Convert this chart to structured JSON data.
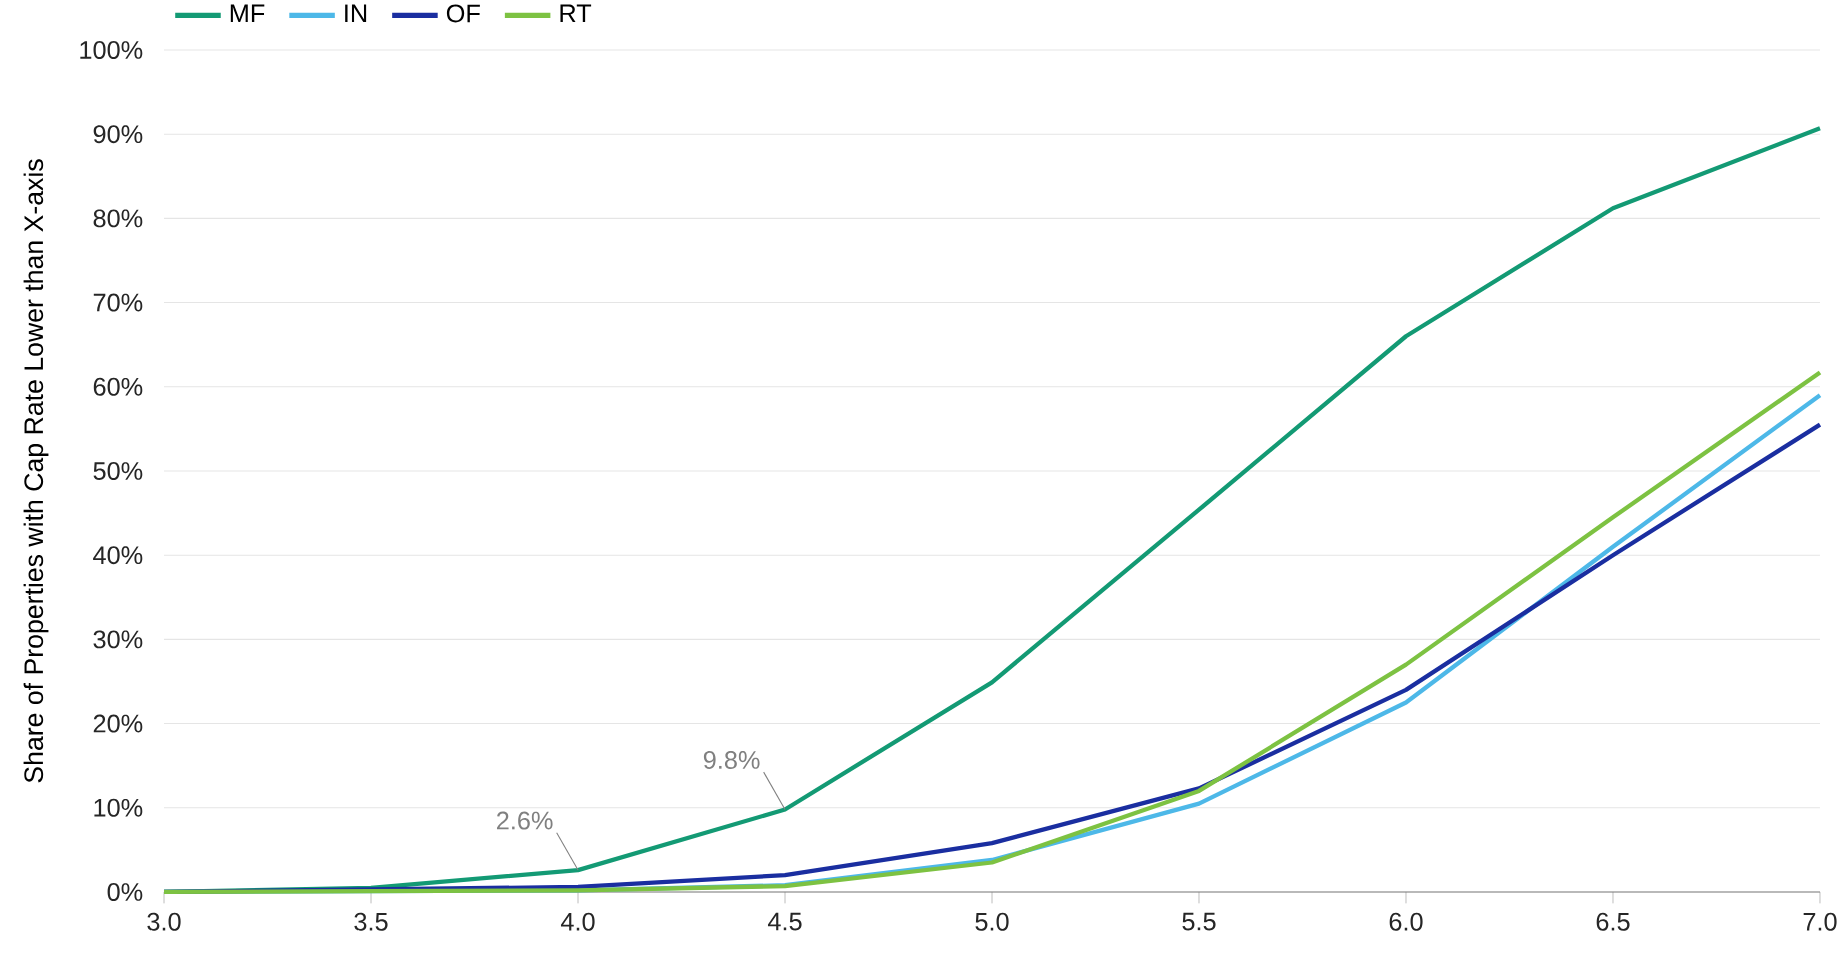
{
  "chart_data": {
    "type": "line",
    "ylabel": "Share of Properties with Cap Rate Lower than X-axis",
    "x": [
      3.0,
      3.5,
      4.0,
      4.5,
      5.0,
      5.5,
      6.0,
      6.5,
      7.0
    ],
    "series": [
      {
        "name": "MF",
        "color": "#139a74",
        "values": [
          0,
          0.5,
          2.6,
          9.8,
          24.9,
          45.4,
          66,
          81.2,
          90.7
        ]
      },
      {
        "name": "IN",
        "color": "#4db8e8",
        "values": [
          0,
          0.1,
          0.2,
          0.8,
          3.8,
          10.5,
          22.5,
          41,
          59
        ]
      },
      {
        "name": "OF",
        "color": "#1a2ea0",
        "values": [
          0,
          0.3,
          0.6,
          2.0,
          5.8,
          12.3,
          24,
          40,
          55.5
        ]
      },
      {
        "name": "RT",
        "color": "#7dc242",
        "values": [
          0,
          0.1,
          0.2,
          0.7,
          3.5,
          12,
          27,
          44.5,
          61.7
        ]
      }
    ],
    "annotations": [
      {
        "text": "2.6%",
        "x": 4.0,
        "y": 2.6
      },
      {
        "text": "9.8%",
        "x": 4.5,
        "y": 9.8
      }
    ],
    "xlim": [
      3.0,
      7.0
    ],
    "xticks": [
      {
        "value": 3.0,
        "label": "3.0"
      },
      {
        "value": 3.5,
        "label": "3.5"
      },
      {
        "value": 4.0,
        "label": "4.0"
      },
      {
        "value": 4.5,
        "label": "4.5"
      },
      {
        "value": 5.0,
        "label": "5.0"
      },
      {
        "value": 5.5,
        "label": "5.5"
      },
      {
        "value": 6.0,
        "label": "6.0"
      },
      {
        "value": 6.5,
        "label": "6.5"
      },
      {
        "value": 7.0,
        "label": "7.0"
      }
    ],
    "ylim": [
      0,
      100
    ],
    "yticks": [
      {
        "value": 0,
        "label": "0%"
      },
      {
        "value": 10,
        "label": "10%"
      },
      {
        "value": 20,
        "label": "20%"
      },
      {
        "value": 30,
        "label": "30%"
      },
      {
        "value": 40,
        "label": "40%"
      },
      {
        "value": 50,
        "label": "50%"
      },
      {
        "value": 60,
        "label": "60%"
      },
      {
        "value": 70,
        "label": "70%"
      },
      {
        "value": 80,
        "label": "80%"
      },
      {
        "value": 90,
        "label": "90%"
      },
      {
        "value": 100,
        "label": "100%"
      }
    ],
    "grid": "y",
    "legend": "top left",
    "marker": "none",
    "line_style": "solid"
  }
}
